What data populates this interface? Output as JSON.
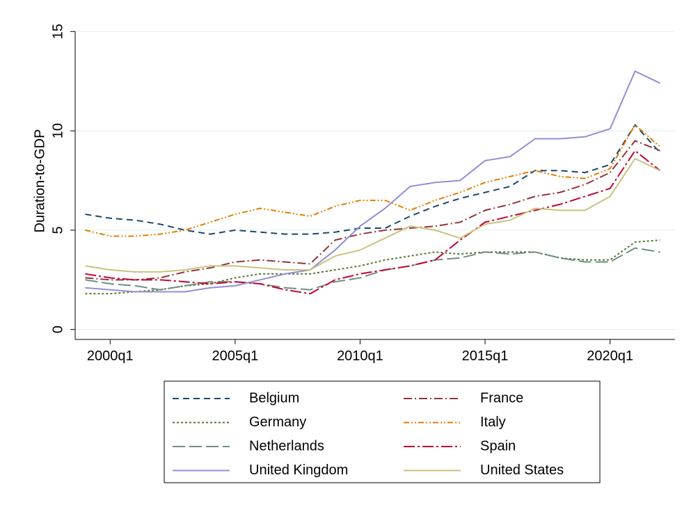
{
  "chart_data": {
    "type": "line",
    "y_label": "Duration-to-GDP",
    "x": [
      1999,
      2000,
      2001,
      2002,
      2003,
      2004,
      2005,
      2006,
      2007,
      2008,
      2009,
      2010,
      2011,
      2012,
      2013,
      2014,
      2015,
      2016,
      2017,
      2018,
      2019,
      2020,
      2021,
      2022
    ],
    "xlim": [
      1998.6,
      2022.6
    ],
    "xticks": [
      {
        "value": 2000,
        "label": "2000q1"
      },
      {
        "value": 2005,
        "label": "2005q1"
      },
      {
        "value": 2010,
        "label": "2010q1"
      },
      {
        "value": 2015,
        "label": "2015q1"
      },
      {
        "value": 2020,
        "label": "2020q1"
      }
    ],
    "ylim": [
      -0.5,
      15.5
    ],
    "yticks": [
      0,
      5,
      10,
      15
    ],
    "grid": true,
    "series": [
      {
        "name": "Belgium",
        "color": "#1a476f",
        "dash": "9,6",
        "values": [
          5.8,
          5.6,
          5.5,
          5.3,
          5.0,
          4.8,
          5.0,
          4.9,
          4.8,
          4.8,
          4.9,
          5.1,
          5.1,
          5.7,
          6.2,
          6.6,
          6.9,
          7.2,
          8.0,
          8.0,
          7.9,
          8.3,
          10.3,
          8.9
        ]
      },
      {
        "name": "France",
        "color": "#90353b",
        "dash": "12,4,2,4",
        "values": [
          2.6,
          2.5,
          2.5,
          2.6,
          2.9,
          3.1,
          3.4,
          3.5,
          3.4,
          3.3,
          4.5,
          4.8,
          5.0,
          5.1,
          5.2,
          5.4,
          6.0,
          6.3,
          6.7,
          6.9,
          7.3,
          7.9,
          9.5,
          9.0
        ]
      },
      {
        "name": "Germany",
        "color": "#55752f",
        "dash": "3,3",
        "values": [
          1.8,
          1.8,
          1.9,
          2.0,
          2.2,
          2.3,
          2.6,
          2.8,
          2.8,
          2.8,
          3.0,
          3.2,
          3.5,
          3.7,
          3.9,
          3.8,
          3.9,
          3.9,
          3.9,
          3.6,
          3.5,
          3.5,
          4.4,
          4.5
        ]
      },
      {
        "name": "Italy",
        "color": "#e37e00",
        "dash": "8,3,2,3,2,3",
        "values": [
          5.0,
          4.7,
          4.7,
          4.8,
          5.0,
          5.4,
          5.8,
          6.1,
          5.9,
          5.7,
          6.2,
          6.5,
          6.5,
          6.0,
          6.5,
          6.9,
          7.4,
          7.7,
          8.0,
          7.7,
          7.6,
          8.1,
          10.3,
          9.2
        ]
      },
      {
        "name": "Netherlands",
        "color": "#6e8e84",
        "dash": "18,6",
        "values": [
          2.5,
          2.3,
          2.2,
          2.0,
          2.2,
          2.4,
          2.4,
          2.3,
          2.1,
          2.0,
          2.4,
          2.6,
          3.0,
          3.2,
          3.5,
          3.6,
          3.9,
          3.8,
          3.9,
          3.6,
          3.4,
          3.4,
          4.1,
          3.9
        ]
      },
      {
        "name": "Spain",
        "color": "#c10534",
        "dash": "16,4,3,4",
        "values": [
          2.8,
          2.6,
          2.5,
          2.5,
          2.4,
          2.3,
          2.4,
          2.3,
          2.0,
          1.8,
          2.5,
          2.8,
          3.0,
          3.2,
          3.5,
          4.5,
          5.4,
          5.7,
          6.0,
          6.3,
          6.7,
          7.1,
          9.0,
          8.0
        ]
      },
      {
        "name": "United Kingdom",
        "color": "#938dd2",
        "dash": "none",
        "values": [
          2.1,
          2.0,
          1.9,
          1.9,
          1.9,
          2.1,
          2.2,
          2.5,
          2.8,
          3.0,
          4.0,
          5.2,
          6.1,
          7.2,
          7.4,
          7.5,
          8.5,
          8.7,
          9.6,
          9.6,
          9.7,
          10.1,
          13.0,
          12.4
        ]
      },
      {
        "name": "United States",
        "color": "#cac27e",
        "dash": "none",
        "values": [
          3.2,
          3.0,
          2.9,
          2.9,
          3.0,
          3.2,
          3.2,
          3.1,
          3.0,
          3.0,
          3.7,
          4.0,
          4.6,
          5.2,
          5.0,
          4.6,
          5.3,
          5.5,
          6.1,
          6.0,
          6.0,
          6.7,
          8.6,
          8.0
        ]
      }
    ]
  }
}
